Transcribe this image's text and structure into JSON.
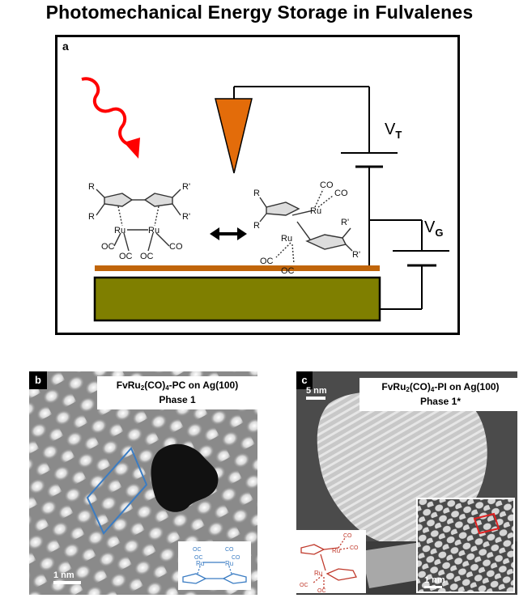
{
  "title": "Photomechanical Energy Storage in Fulvalenes",
  "panel_a": {
    "letter": "a",
    "vt_main": "V",
    "vt_sub": "T",
    "vg_main": "V",
    "vg_sub": "G",
    "left_molecule": {
      "r1": "R",
      "r2": "R",
      "r3": "R'",
      "r4": "R'",
      "ru1": "Ru",
      "ru2": "Ru",
      "co1": "OC",
      "co2": "OC",
      "co3": "OC",
      "co4": "CO"
    },
    "right_molecule": {
      "r1": "R",
      "r2": "R",
      "r3": "R'",
      "r4": "R'",
      "ru1": "Ru",
      "ru2": "Ru",
      "co1": "CO",
      "co2": "CO",
      "co3": "OC",
      "co4": "OC"
    },
    "colors": {
      "tip": "#E36C0A",
      "substrate": "#7F7F00",
      "surface": "#C0650A",
      "light": "#FF0000"
    }
  },
  "panel_b": {
    "letter": "b",
    "label_line1_pre": "FvRu",
    "label_line1_sub1": "2",
    "label_line1_mid": "(CO)",
    "label_line1_sub2": "4",
    "label_line1_post": "-PC on Ag(100)",
    "label_line2": "Phase 1",
    "scale": "1 nm",
    "inset": {
      "ru1": "Ru",
      "ru2": "Ru",
      "co1": "OC",
      "co2": "OC",
      "co3": "CO",
      "co4": "CO"
    },
    "color_cell": "#3A7CC3"
  },
  "panel_c": {
    "letter": "c",
    "label_line1_pre": "FvRu",
    "label_line1_sub1": "2",
    "label_line1_mid": "(CO)",
    "label_line1_sub2": "4",
    "label_line1_post": "-PI on Ag(100)",
    "label_line2": "Phase 1*",
    "scale_main": "5 nm",
    "scale_inset": "1 nm",
    "inset": {
      "ru1": "Ru",
      "ru2": "Ru",
      "co1": "CO",
      "co2": "CO",
      "co3": "OC",
      "co4": "OC"
    },
    "color_inset_molecule": "#C0392B"
  }
}
